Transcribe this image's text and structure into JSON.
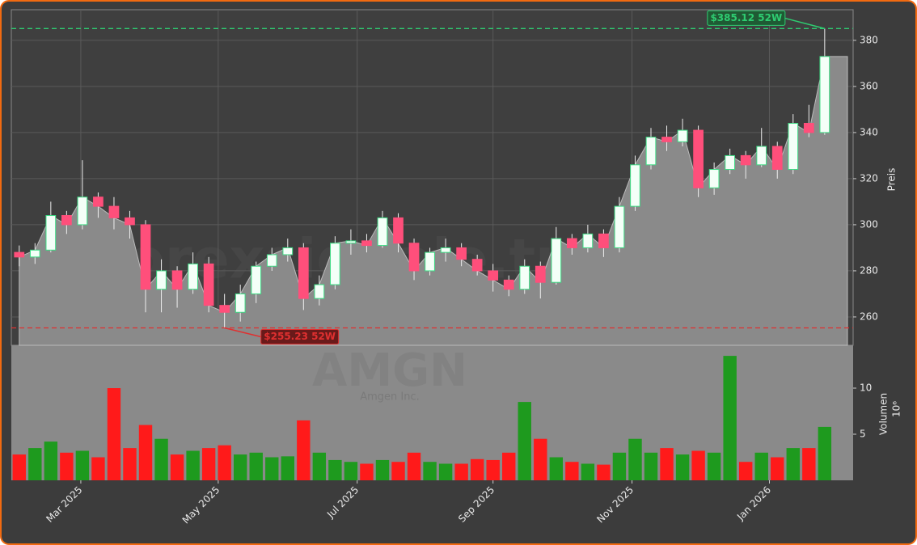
{
  "chart_data": [
    {
      "type": "candlestick",
      "watermark": "forexsignale.trade",
      "ylabel": "Preis",
      "categories": [
        null,
        null,
        null,
        null,
        null,
        null,
        null,
        null,
        null,
        null,
        null,
        null,
        null,
        null,
        null,
        null,
        null,
        null,
        null,
        null,
        null,
        null,
        null,
        null,
        null,
        null,
        null,
        null,
        null,
        null,
        null,
        null,
        null,
        null,
        null,
        null,
        null,
        null,
        null,
        null,
        null,
        null,
        null,
        null,
        null,
        null,
        null,
        null,
        null,
        null,
        null,
        null
      ],
      "open": [
        288,
        286,
        289,
        304,
        300,
        312,
        308,
        303,
        300,
        272,
        280,
        272,
        283,
        265,
        262,
        270,
        282,
        287,
        290,
        268,
        274,
        292,
        293,
        291,
        303,
        292,
        280,
        288,
        290,
        285,
        280,
        276,
        272,
        282,
        275,
        294,
        290,
        296,
        290,
        308,
        326,
        338,
        336,
        341,
        316,
        324,
        330,
        326,
        334,
        324,
        344,
        340
      ],
      "high": [
        291,
        292,
        310,
        306,
        328,
        314,
        312,
        306,
        302,
        285,
        282,
        288,
        286,
        270,
        274,
        284,
        290,
        294,
        292,
        278,
        295,
        298,
        296,
        306,
        305,
        294,
        290,
        294,
        292,
        287,
        283,
        278,
        285,
        284,
        299,
        296,
        300,
        298,
        312,
        330,
        342,
        343,
        346,
        343,
        327,
        333,
        332,
        342,
        336,
        348,
        352,
        385.12
      ],
      "low": [
        282,
        283,
        288,
        296,
        298,
        303,
        298,
        294,
        262,
        262,
        264,
        270,
        262,
        255.23,
        258,
        266,
        280,
        284,
        263,
        265,
        272,
        287,
        288,
        290,
        288,
        276,
        278,
        284,
        282,
        278,
        271,
        269,
        270,
        268,
        274,
        287,
        288,
        286,
        288,
        306,
        324,
        332,
        334,
        312,
        313,
        322,
        320,
        325,
        320,
        322,
        338,
        339
      ],
      "close": [
        286,
        289,
        304,
        300,
        312,
        308,
        303,
        300,
        272,
        280,
        272,
        283,
        265,
        262,
        270,
        282,
        287,
        290,
        268,
        274,
        292,
        293,
        291,
        303,
        292,
        280,
        288,
        290,
        285,
        280,
        276,
        272,
        282,
        275,
        294,
        290,
        296,
        290,
        308,
        326,
        338,
        336,
        341,
        316,
        324,
        330,
        326,
        334,
        324,
        344,
        340,
        373
      ],
      "up_color": "#3ddc84",
      "down_color": "#ff4f7b",
      "area_color": "#8a8a8a",
      "xlim": [
        -0.5,
        52.8
      ],
      "xticks": [
        {
          "value": 3.9,
          "label": "Mar 2025"
        },
        {
          "value": 12.6,
          "label": "May 2025"
        },
        {
          "value": 21.4,
          "label": "Jul 2025"
        },
        {
          "value": 30.0,
          "label": "Sep 2025"
        },
        {
          "value": 38.8,
          "label": "Nov 2025"
        },
        {
          "value": 47.5,
          "label": "Jan 2026"
        }
      ],
      "ylim": [
        247.7,
        393.3
      ],
      "yticks": [
        260,
        280,
        300,
        320,
        340,
        360,
        380
      ],
      "grid": true,
      "annotations": [
        {
          "label": "$385.12 52W",
          "value": 385.12,
          "x": 51,
          "color": "#2ecc71"
        },
        {
          "label": "$255.23 52W",
          "value": 255.23,
          "x": 13,
          "color": "#e03030"
        }
      ]
    },
    {
      "type": "bar",
      "watermark": "AMGN",
      "subtitle": "Amgen Inc.",
      "ylabel": "Volumen",
      "scale_label": "10⁶",
      "values": [
        2.8,
        3.5,
        4.2,
        3.0,
        3.2,
        2.5,
        10,
        3.5,
        6,
        4.5,
        2.8,
        3.2,
        3.5,
        3.8,
        2.8,
        3.0,
        2.5,
        2.6,
        6.5,
        3.0,
        2.2,
        2.0,
        1.8,
        2.2,
        2.0,
        3.0,
        2.0,
        1.8,
        1.8,
        2.3,
        2.2,
        3.0,
        8.5,
        4.5,
        2.5,
        2.0,
        1.8,
        1.7,
        3.0,
        4.5,
        3.0,
        3.5,
        2.8,
        3.2,
        3.0,
        13.5,
        2.0,
        3.0,
        2.5,
        3.5,
        3.5,
        5.8
      ],
      "up_color": "#1e9a1e",
      "down_color": "#ff1a1a",
      "ylim": [
        0,
        14.65
      ],
      "yticks": [
        5,
        10
      ]
    }
  ]
}
